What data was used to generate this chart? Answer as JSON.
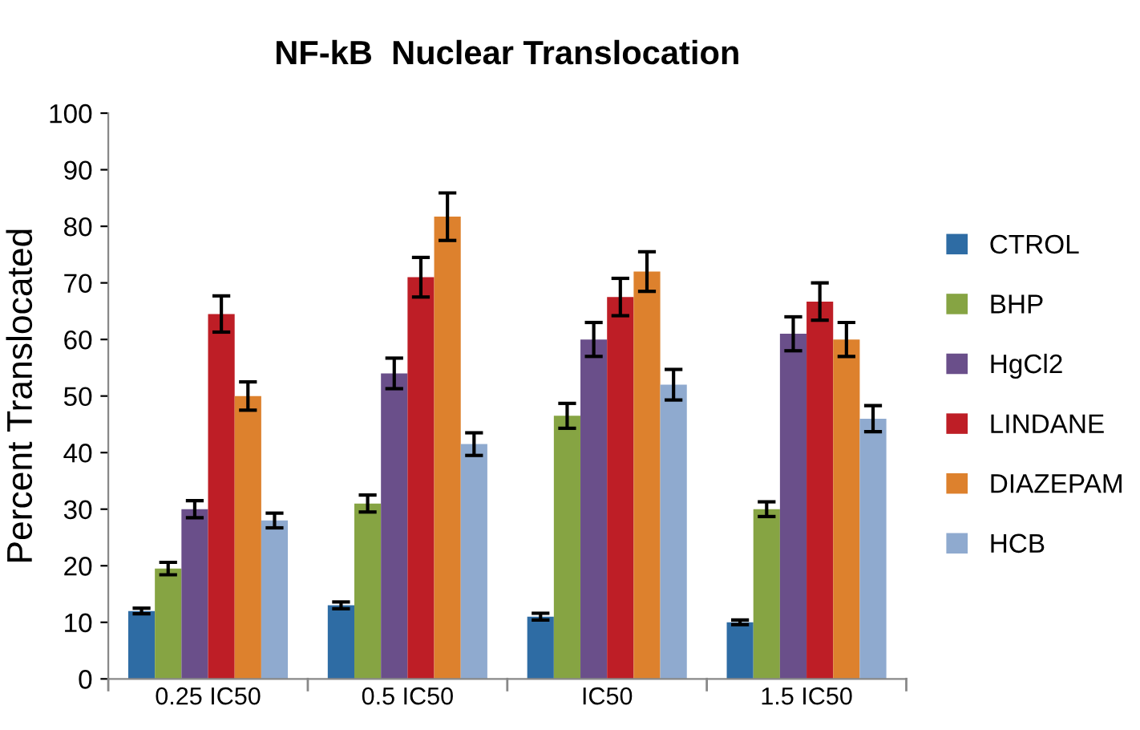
{
  "chart_data": {
    "type": "bar",
    "title": "NF-kB  Nuclear Translocation",
    "ylabel": "Percent Translocated",
    "categories": [
      "0.25 IC50",
      "0.5 IC50",
      "IC50",
      "1.5 IC50"
    ],
    "ylim": [
      0,
      100
    ],
    "yticks": [
      0,
      10,
      20,
      30,
      40,
      50,
      60,
      70,
      80,
      90,
      100
    ],
    "grid": false,
    "legend": "right",
    "series": [
      {
        "name": "CTROL",
        "color": "#2e6ca4",
        "values": [
          12,
          13,
          11,
          10
        ],
        "errors": [
          0.5,
          0.6,
          0.6,
          0.4
        ]
      },
      {
        "name": "BHP",
        "color": "#86a443",
        "values": [
          19.5,
          31,
          46.5,
          30
        ],
        "errors": [
          1.1,
          1.5,
          2.2,
          1.3
        ]
      },
      {
        "name": "HgCl2",
        "color": "#6a4f8a",
        "values": [
          30,
          54,
          60,
          61
        ],
        "errors": [
          1.5,
          2.7,
          3,
          3
        ]
      },
      {
        "name": "LINDANE",
        "color": "#be1e26",
        "values": [
          64.5,
          71,
          67.5,
          66.7
        ],
        "errors": [
          3.2,
          3.5,
          3.3,
          3.3
        ]
      },
      {
        "name": "DIAZEPAM",
        "color": "#dd812d",
        "values": [
          50,
          81.7,
          72,
          60
        ],
        "errors": [
          2.5,
          4.2,
          3.5,
          3
        ]
      },
      {
        "name": "HCB",
        "color": "#8faacf",
        "values": [
          28,
          41.5,
          52,
          46
        ],
        "errors": [
          1.3,
          2,
          2.7,
          2.3
        ]
      }
    ]
  }
}
